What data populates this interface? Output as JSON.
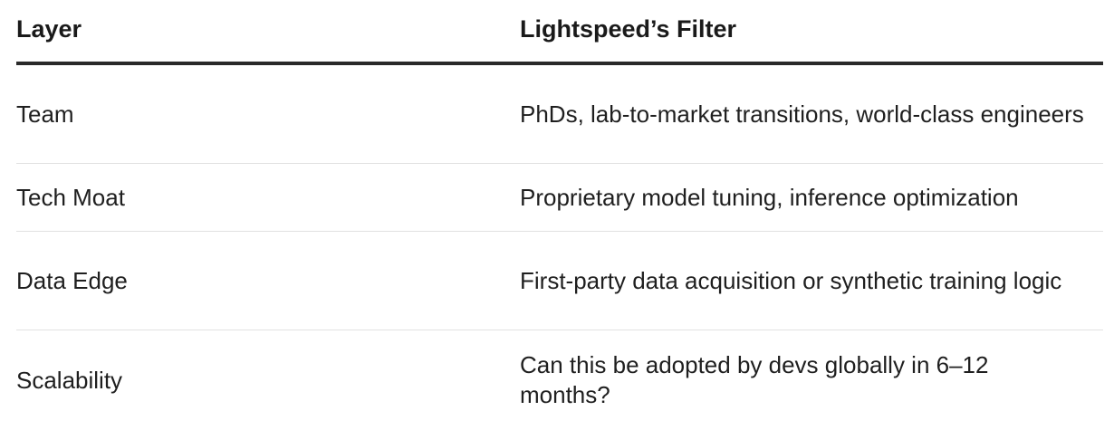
{
  "table": {
    "headers": {
      "layer": "Layer",
      "filter": "Lightspeed’s Filter"
    },
    "rows": [
      {
        "layer": "Team",
        "filter": "PhDs, lab-to-market transitions, world-class engineers"
      },
      {
        "layer": "Tech Moat",
        "filter": "Proprietary model tuning, inference optimization"
      },
      {
        "layer": "Data Edge",
        "filter": "First-party data acquisition or synthetic training logic"
      },
      {
        "layer": "Scalability",
        "filter": "Can this be adopted by devs globally in 6–12 months?"
      }
    ]
  },
  "colors": {
    "text": "#1f1f1f",
    "header_rule": "#2a2a2a",
    "row_divider": "#e1e1e1",
    "background": "#ffffff"
  }
}
